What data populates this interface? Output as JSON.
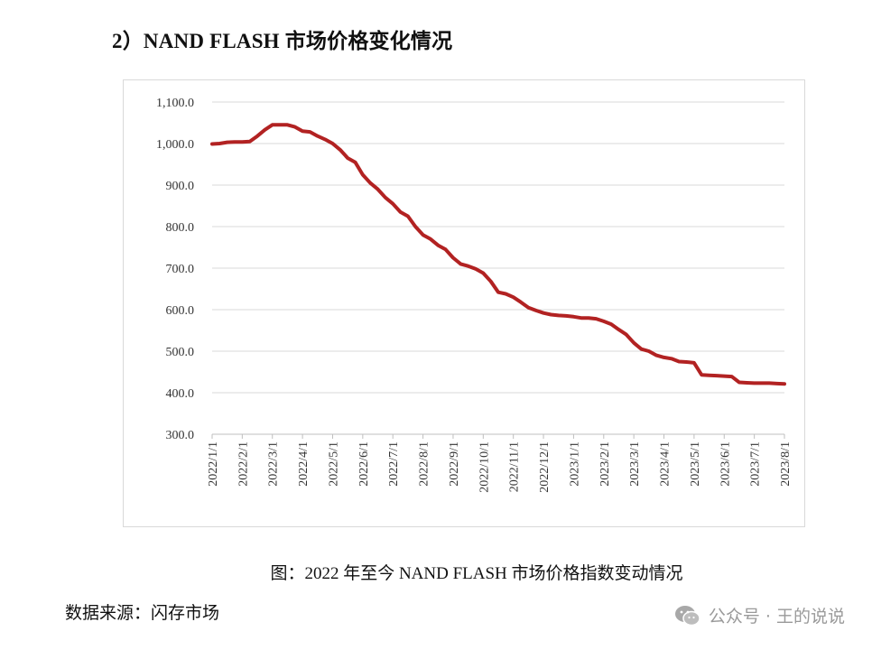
{
  "header": {
    "title": "2）NAND FLASH 市场价格变化情况"
  },
  "caption": "图：2022 年至今 NAND FLASH 市场价格指数变动情况",
  "source": "数据来源：闪存市场",
  "watermark": {
    "text": "公众号 · 王的说说",
    "icon": "wechat-icon"
  },
  "chart_data": {
    "type": "line",
    "title": "",
    "xlabel": "",
    "ylabel": "",
    "ylim": [
      300,
      1100
    ],
    "yticks": [
      "300.0",
      "400.0",
      "500.0",
      "600.0",
      "700.0",
      "800.0",
      "900.0",
      "1,000.0",
      "1,100.0"
    ],
    "ytick_values": [
      300,
      400,
      500,
      600,
      700,
      800,
      900,
      1000,
      1100
    ],
    "categories": [
      "2022/1/1",
      "2022/2/1",
      "2022/3/1",
      "2022/4/1",
      "2022/5/1",
      "2022/6/1",
      "2022/7/1",
      "2022/8/1",
      "2022/9/1",
      "2022/10/1",
      "2022/11/1",
      "2022/12/1",
      "2023/1/1",
      "2023/2/1",
      "2023/3/1",
      "2023/4/1",
      "2023/5/1",
      "2023/6/1",
      "2023/7/1",
      "2023/8/1"
    ],
    "grid": true,
    "series": [
      {
        "name": "NAND FLASH 市场价格指数",
        "color": "#b22222",
        "x": [
          0,
          0.25,
          0.5,
          0.75,
          1.0,
          1.25,
          1.5,
          1.75,
          2.0,
          2.25,
          2.5,
          2.75,
          3.0,
          3.25,
          3.5,
          3.75,
          4.0,
          4.25,
          4.5,
          4.75,
          5.0,
          5.25,
          5.5,
          5.75,
          6.0,
          6.25,
          6.5,
          6.75,
          7.0,
          7.25,
          7.5,
          7.75,
          8.0,
          8.25,
          8.5,
          8.75,
          9.0,
          9.25,
          9.5,
          9.75,
          10.0,
          10.25,
          10.5,
          10.75,
          11.0,
          11.25,
          11.5,
          11.75,
          12.0,
          12.25,
          12.5,
          12.75,
          13.0,
          13.25,
          13.5,
          13.75,
          14.0,
          14.25,
          14.5,
          14.75,
          15.0,
          15.25,
          15.5,
          15.75,
          16.0,
          16.25,
          16.5,
          16.75,
          17.0,
          17.25,
          17.5,
          17.75,
          18.0,
          18.25,
          18.5,
          18.75,
          19.0
        ],
        "values": [
          999,
          1000,
          1003,
          1004,
          1004,
          1005,
          1018,
          1033,
          1045,
          1045,
          1045,
          1040,
          1030,
          1028,
          1018,
          1010,
          1000,
          985,
          965,
          955,
          925,
          905,
          890,
          870,
          855,
          835,
          825,
          800,
          780,
          770,
          755,
          745,
          725,
          710,
          705,
          698,
          688,
          668,
          642,
          638,
          630,
          618,
          605,
          598,
          592,
          588,
          586,
          585,
          583,
          580,
          580,
          578,
          572,
          565,
          552,
          540,
          520,
          505,
          500,
          490,
          485,
          482,
          475,
          474,
          472,
          443,
          442,
          441,
          440,
          439,
          425,
          424,
          423,
          423,
          423,
          422,
          421
        ]
      }
    ]
  }
}
